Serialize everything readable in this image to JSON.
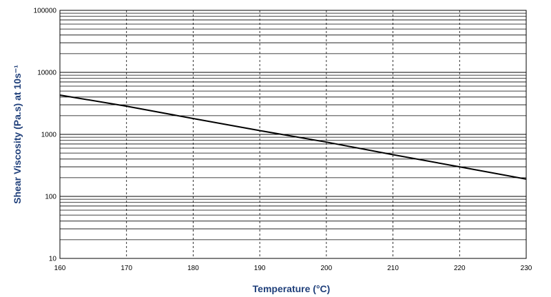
{
  "chart_data": {
    "type": "line",
    "title": "",
    "xlabel": "Temperature (°C)",
    "ylabel": "Shear Viscosity (Pa.s) at 10s⁻¹",
    "x_scale": "linear",
    "y_scale": "log",
    "xlim": [
      160,
      230
    ],
    "ylim": [
      10,
      100000
    ],
    "x_ticks": [
      "160",
      "170",
      "180",
      "190",
      "200",
      "210",
      "220",
      "230"
    ],
    "y_ticks": [
      "10",
      "100",
      "1000",
      "10000",
      "100000"
    ],
    "grid": true,
    "legend": "none",
    "series": [
      {
        "x": [
          160,
          170,
          180,
          190,
          200,
          210,
          220,
          230
        ],
        "y": [
          4300,
          2850,
          1800,
          1150,
          750,
          470,
          300,
          190
        ]
      }
    ],
    "colors": {
      "line": "#000000",
      "grid": "#000000",
      "axis_title": "#1f3f7a"
    }
  }
}
